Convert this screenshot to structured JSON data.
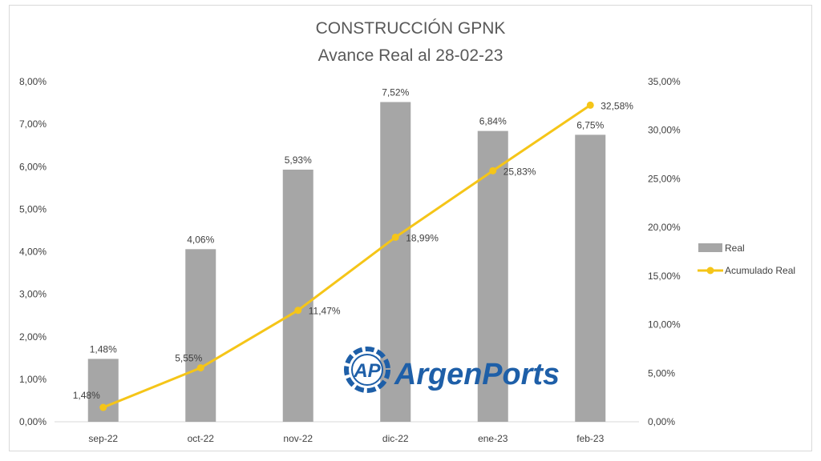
{
  "chart_data": {
    "type": "bar",
    "title": "CONSTRUCCIÓN GPNK",
    "subtitle": "Avance Real al 28-02-23",
    "categories": [
      "sep-22",
      "oct-22",
      "nov-22",
      "dic-22",
      "ene-23",
      "feb-23"
    ],
    "series": [
      {
        "name": "Real",
        "type": "bar",
        "axis": "left",
        "color": "#a6a6a6",
        "values": [
          1.48,
          4.06,
          5.93,
          7.52,
          6.84,
          6.75
        ],
        "labels": [
          "1,48%",
          "4,06%",
          "5,93%",
          "7,52%",
          "6,84%",
          "6,75%"
        ]
      },
      {
        "name": "Acumulado Real",
        "type": "line",
        "axis": "right",
        "color": "#f5c518",
        "values": [
          1.48,
          5.55,
          11.47,
          18.99,
          25.83,
          32.58
        ],
        "labels": [
          "1,48%",
          "5,55%",
          "11,47%",
          "18,99%",
          "25,83%",
          "32,58%"
        ]
      }
    ],
    "y_left": {
      "ylim": [
        0,
        8
      ],
      "ticks": [
        0,
        1,
        2,
        3,
        4,
        5,
        6,
        7,
        8
      ],
      "tick_labels": [
        "0,00%",
        "1,00%",
        "2,00%",
        "3,00%",
        "4,00%",
        "5,00%",
        "6,00%",
        "7,00%",
        "8,00%"
      ]
    },
    "y_right": {
      "ylim": [
        0,
        35
      ],
      "ticks": [
        0,
        5,
        10,
        15,
        20,
        25,
        30,
        35
      ],
      "tick_labels": [
        "0,00%",
        "5,00%",
        "10,00%",
        "15,00%",
        "20,00%",
        "25,00%",
        "30,00%",
        "35,00%"
      ]
    },
    "xlabel": "",
    "ylabel": "",
    "grid": false,
    "legend_position": "right"
  },
  "watermark": {
    "text": "ArgenPorts",
    "emblem_letters": "AP",
    "color": "#1e5fa8"
  }
}
